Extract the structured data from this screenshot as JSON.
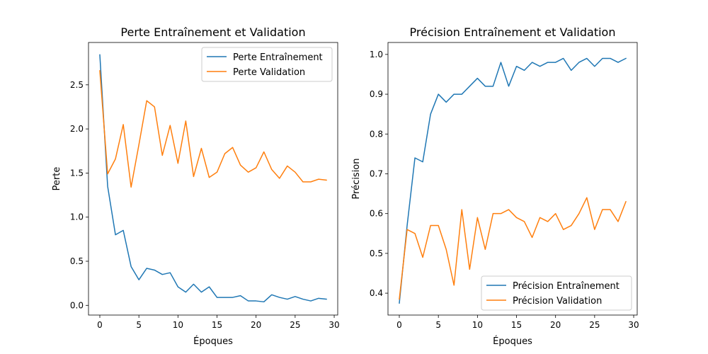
{
  "chart_data": [
    {
      "type": "line",
      "title": "Perte Entraînement et Validation",
      "xlabel": "Époques",
      "ylabel": "Perte",
      "xlim": [
        -1.45,
        30.45
      ],
      "ylim": [
        -0.11,
        2.98
      ],
      "xticks": [
        0,
        5,
        10,
        15,
        20,
        25,
        30
      ],
      "yticks": [
        0.0,
        0.5,
        1.0,
        1.5,
        2.0,
        2.5
      ],
      "ytick_decimals": 1,
      "grid": false,
      "legend_position": "upper right",
      "x": [
        0,
        1,
        2,
        3,
        4,
        5,
        6,
        7,
        8,
        9,
        10,
        11,
        12,
        13,
        14,
        15,
        16,
        17,
        18,
        19,
        20,
        21,
        22,
        23,
        24,
        25,
        26,
        27,
        28,
        29
      ],
      "series": [
        {
          "name": "Perte Entraînement",
          "color": "#1f77b4",
          "values": [
            2.84,
            1.35,
            0.8,
            0.85,
            0.44,
            0.29,
            0.42,
            0.4,
            0.35,
            0.37,
            0.21,
            0.15,
            0.24,
            0.15,
            0.21,
            0.09,
            0.09,
            0.09,
            0.11,
            0.05,
            0.05,
            0.04,
            0.12,
            0.09,
            0.07,
            0.1,
            0.07,
            0.05,
            0.08,
            0.07
          ]
        },
        {
          "name": "Perte Validation",
          "color": "#ff7f0e",
          "values": [
            2.66,
            1.49,
            1.66,
            2.05,
            1.34,
            1.82,
            2.32,
            2.25,
            1.7,
            2.04,
            1.61,
            2.09,
            1.46,
            1.78,
            1.45,
            1.51,
            1.72,
            1.79,
            1.59,
            1.51,
            1.56,
            1.74,
            1.54,
            1.44,
            1.58,
            1.51,
            1.4,
            1.4,
            1.43,
            1.42
          ]
        }
      ]
    },
    {
      "type": "line",
      "title": "Précision Entraînement et Validation",
      "xlabel": "Époques",
      "ylabel": "Précision",
      "xlim": [
        -1.45,
        30.45
      ],
      "ylim": [
        0.345,
        1.03
      ],
      "xticks": [
        0,
        5,
        10,
        15,
        20,
        25,
        30
      ],
      "yticks": [
        0.4,
        0.5,
        0.6,
        0.7,
        0.8,
        0.9,
        1.0
      ],
      "ytick_decimals": 1,
      "grid": false,
      "legend_position": "lower right",
      "x": [
        0,
        1,
        2,
        3,
        4,
        5,
        6,
        7,
        8,
        9,
        10,
        11,
        12,
        13,
        14,
        15,
        16,
        17,
        18,
        19,
        20,
        21,
        22,
        23,
        24,
        25,
        26,
        27,
        28,
        29
      ],
      "series": [
        {
          "name": "Précision Entraînement",
          "color": "#1f77b4",
          "values": [
            0.375,
            0.57,
            0.74,
            0.73,
            0.85,
            0.9,
            0.88,
            0.9,
            0.9,
            0.92,
            0.94,
            0.92,
            0.92,
            0.98,
            0.92,
            0.97,
            0.96,
            0.98,
            0.97,
            0.98,
            0.98,
            0.99,
            0.96,
            0.98,
            0.99,
            0.97,
            0.99,
            0.99,
            0.98,
            0.99
          ]
        },
        {
          "name": "Précision Validation",
          "color": "#ff7f0e",
          "values": [
            0.385,
            0.56,
            0.55,
            0.49,
            0.57,
            0.57,
            0.51,
            0.42,
            0.61,
            0.46,
            0.59,
            0.51,
            0.6,
            0.6,
            0.61,
            0.59,
            0.58,
            0.54,
            0.59,
            0.58,
            0.6,
            0.56,
            0.57,
            0.6,
            0.64,
            0.56,
            0.61,
            0.61,
            0.58,
            0.63
          ]
        }
      ]
    }
  ]
}
